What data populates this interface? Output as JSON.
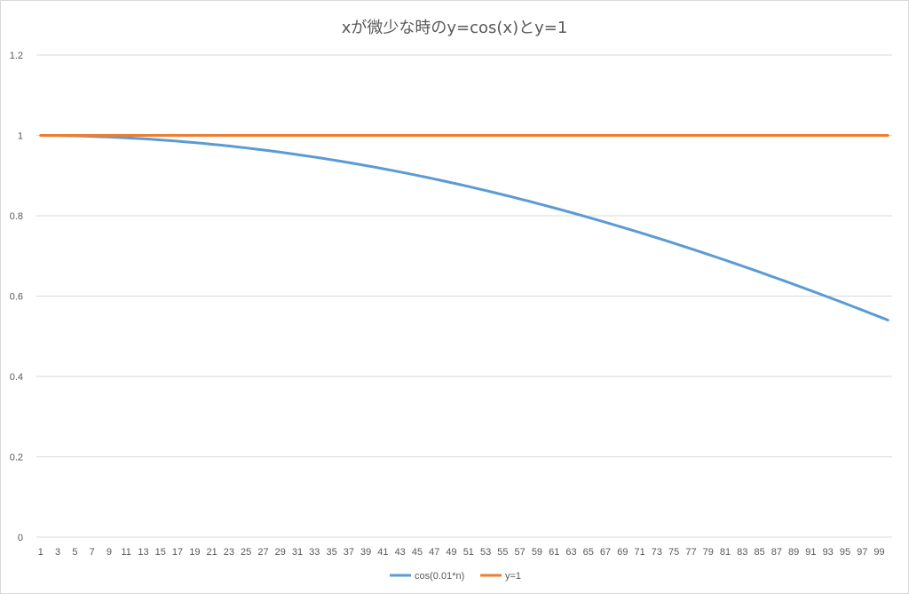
{
  "chart_data": {
    "type": "line",
    "title": "xが微少な時のy=cos(x)とy=1",
    "xlabel": "",
    "ylabel": "",
    "x": [
      1,
      2,
      3,
      4,
      5,
      6,
      7,
      8,
      9,
      10,
      11,
      12,
      13,
      14,
      15,
      16,
      17,
      18,
      19,
      20,
      21,
      22,
      23,
      24,
      25,
      26,
      27,
      28,
      29,
      30,
      31,
      32,
      33,
      34,
      35,
      36,
      37,
      38,
      39,
      40,
      41,
      42,
      43,
      44,
      45,
      46,
      47,
      48,
      49,
      50,
      51,
      52,
      53,
      54,
      55,
      56,
      57,
      58,
      59,
      60,
      61,
      62,
      63,
      64,
      65,
      66,
      67,
      68,
      69,
      70,
      71,
      72,
      73,
      74,
      75,
      76,
      77,
      78,
      79,
      80,
      81,
      82,
      83,
      84,
      85,
      86,
      87,
      88,
      89,
      90,
      91,
      92,
      93,
      94,
      95,
      96,
      97,
      98,
      99,
      100
    ],
    "x_tick_labels": [
      "1",
      "3",
      "5",
      "7",
      "9",
      "11",
      "13",
      "15",
      "17",
      "19",
      "21",
      "23",
      "25",
      "27",
      "29",
      "31",
      "33",
      "35",
      "37",
      "39",
      "41",
      "43",
      "45",
      "47",
      "49",
      "51",
      "53",
      "55",
      "57",
      "59",
      "61",
      "63",
      "65",
      "67",
      "69",
      "71",
      "73",
      "75",
      "77",
      "79",
      "81",
      "83",
      "85",
      "87",
      "89",
      "91",
      "93",
      "95",
      "97",
      "99"
    ],
    "y_ticks": [
      "0",
      "0.2",
      "0.4",
      "0.6",
      "0.8",
      "1",
      "1.2"
    ],
    "ylim": [
      0,
      1.2
    ],
    "grid": true,
    "legend_position": "bottom",
    "series": [
      {
        "name": "cos(0.01*n)",
        "color": "#5b9bd5",
        "values": [
          1.0,
          0.9998,
          0.9996,
          0.9992,
          0.9988,
          0.9982,
          0.9976,
          0.9968,
          0.996,
          0.995,
          0.994,
          0.9928,
          0.9916,
          0.9902,
          0.9888,
          0.9872,
          0.9856,
          0.9838,
          0.982,
          0.9801,
          0.978,
          0.9759,
          0.9737,
          0.9713,
          0.9689,
          0.9664,
          0.9638,
          0.9611,
          0.9582,
          0.9553,
          0.9523,
          0.9492,
          0.946,
          0.9428,
          0.9394,
          0.9359,
          0.9323,
          0.9287,
          0.9249,
          0.9211,
          0.9171,
          0.9131,
          0.909,
          0.9048,
          0.9004,
          0.8961,
          0.8916,
          0.887,
          0.8823,
          0.8776,
          0.8727,
          0.8678,
          0.8628,
          0.8577,
          0.8525,
          0.8473,
          0.8419,
          0.8365,
          0.8309,
          0.8253,
          0.8196,
          0.8139,
          0.808,
          0.8021,
          0.7961,
          0.79,
          0.7838,
          0.7776,
          0.7712,
          0.7648,
          0.7584,
          0.7518,
          0.7452,
          0.7385,
          0.7317,
          0.7248,
          0.7179,
          0.7109,
          0.7038,
          0.6967,
          0.6895,
          0.6822,
          0.6749,
          0.6675,
          0.66,
          0.6524,
          0.6448,
          0.6372,
          0.6294,
          0.6216,
          0.6137,
          0.6058,
          0.5978,
          0.5898,
          0.5817,
          0.5735,
          0.5653,
          0.557,
          0.5487,
          0.5403
        ]
      },
      {
        "name": "y=1",
        "color": "#ed7d31",
        "values": [
          1,
          1,
          1,
          1,
          1,
          1,
          1,
          1,
          1,
          1,
          1,
          1,
          1,
          1,
          1,
          1,
          1,
          1,
          1,
          1,
          1,
          1,
          1,
          1,
          1,
          1,
          1,
          1,
          1,
          1,
          1,
          1,
          1,
          1,
          1,
          1,
          1,
          1,
          1,
          1,
          1,
          1,
          1,
          1,
          1,
          1,
          1,
          1,
          1,
          1,
          1,
          1,
          1,
          1,
          1,
          1,
          1,
          1,
          1,
          1,
          1,
          1,
          1,
          1,
          1,
          1,
          1,
          1,
          1,
          1,
          1,
          1,
          1,
          1,
          1,
          1,
          1,
          1,
          1,
          1,
          1,
          1,
          1,
          1,
          1,
          1,
          1,
          1,
          1,
          1,
          1,
          1,
          1,
          1,
          1,
          1,
          1,
          1,
          1,
          1
        ]
      }
    ]
  }
}
